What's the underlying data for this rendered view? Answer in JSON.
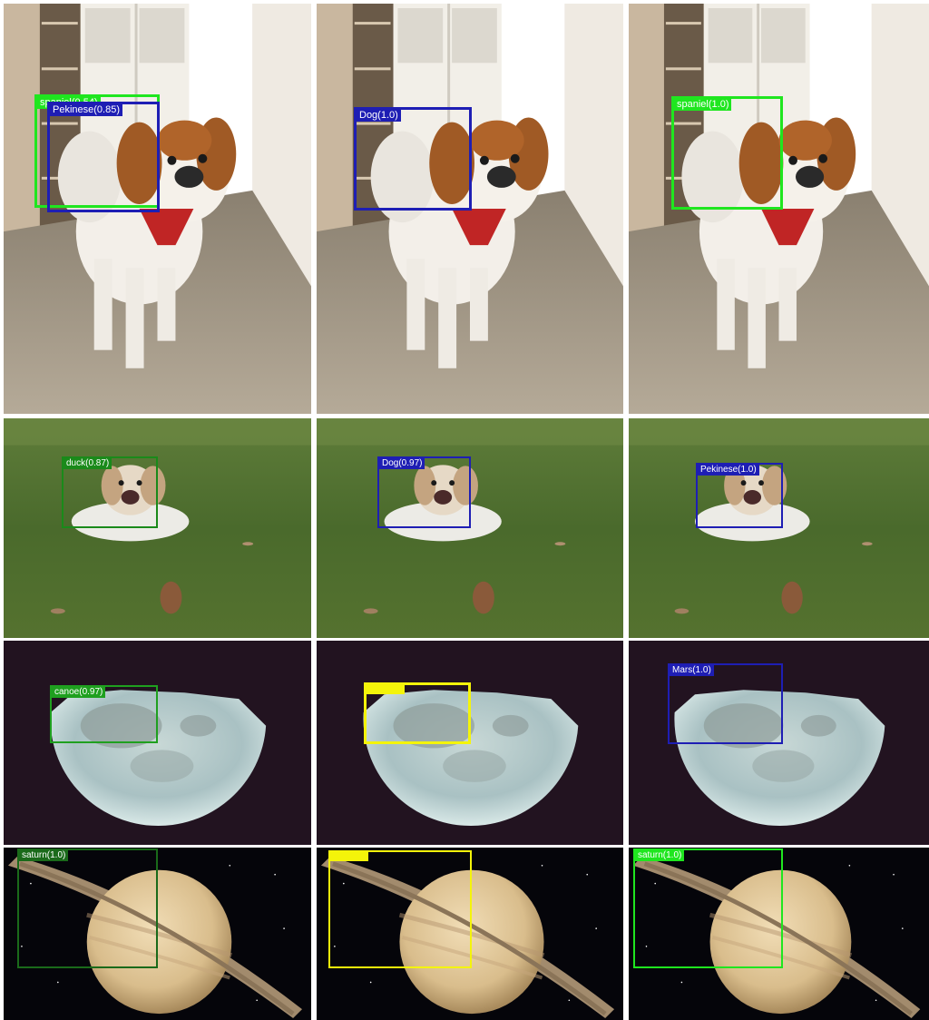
{
  "colors": {
    "bright_green": "#1fe61f",
    "dark_green": "#1a8a1a",
    "blue": "#1e1eb4",
    "yellow": "#f4f40a",
    "label_text": "#ffffff"
  },
  "rows": [
    {
      "scene": "dog-indoor",
      "cells": [
        {
          "detections": [
            {
              "label": "spaniel(0.54)",
              "color": "#1fe61f"
            },
            {
              "label": "Pekinese(0.85)",
              "color": "#1e1eb4"
            }
          ]
        },
        {
          "detections": [
            {
              "label": "Dog(1.0)",
              "color": "#1e1eb4"
            }
          ]
        },
        {
          "detections": [
            {
              "label": "spaniel(1.0)",
              "color": "#1fe61f"
            }
          ]
        }
      ]
    },
    {
      "scene": "dog-grass",
      "cells": [
        {
          "detections": [
            {
              "label": "duck(0.87)",
              "color": "#1a8a1a"
            }
          ]
        },
        {
          "detections": [
            {
              "label": "Dog(0.97)",
              "color": "#1e1eb4"
            }
          ]
        },
        {
          "detections": [
            {
              "label": "Pekinese(1.0)",
              "color": "#1e1eb4"
            }
          ]
        }
      ]
    },
    {
      "scene": "moon",
      "cells": [
        {
          "detections": [
            {
              "label": "canoe(0.97)",
              "color": "#1fa01f"
            }
          ]
        },
        {
          "detections": [
            {
              "label": "",
              "color": "#f4f40a"
            }
          ]
        },
        {
          "detections": [
            {
              "label": "Mars(1.0)",
              "color": "#1e1eb4"
            }
          ]
        }
      ]
    },
    {
      "scene": "saturn",
      "cells": [
        {
          "detections": [
            {
              "label": "saturn(1.0)",
              "color": "#1a6a1a"
            }
          ]
        },
        {
          "detections": [
            {
              "label": "",
              "color": "#f4f40a"
            }
          ]
        },
        {
          "detections": [
            {
              "label": "saturn(1.0)",
              "color": "#1fe61f"
            }
          ]
        }
      ]
    }
  ]
}
